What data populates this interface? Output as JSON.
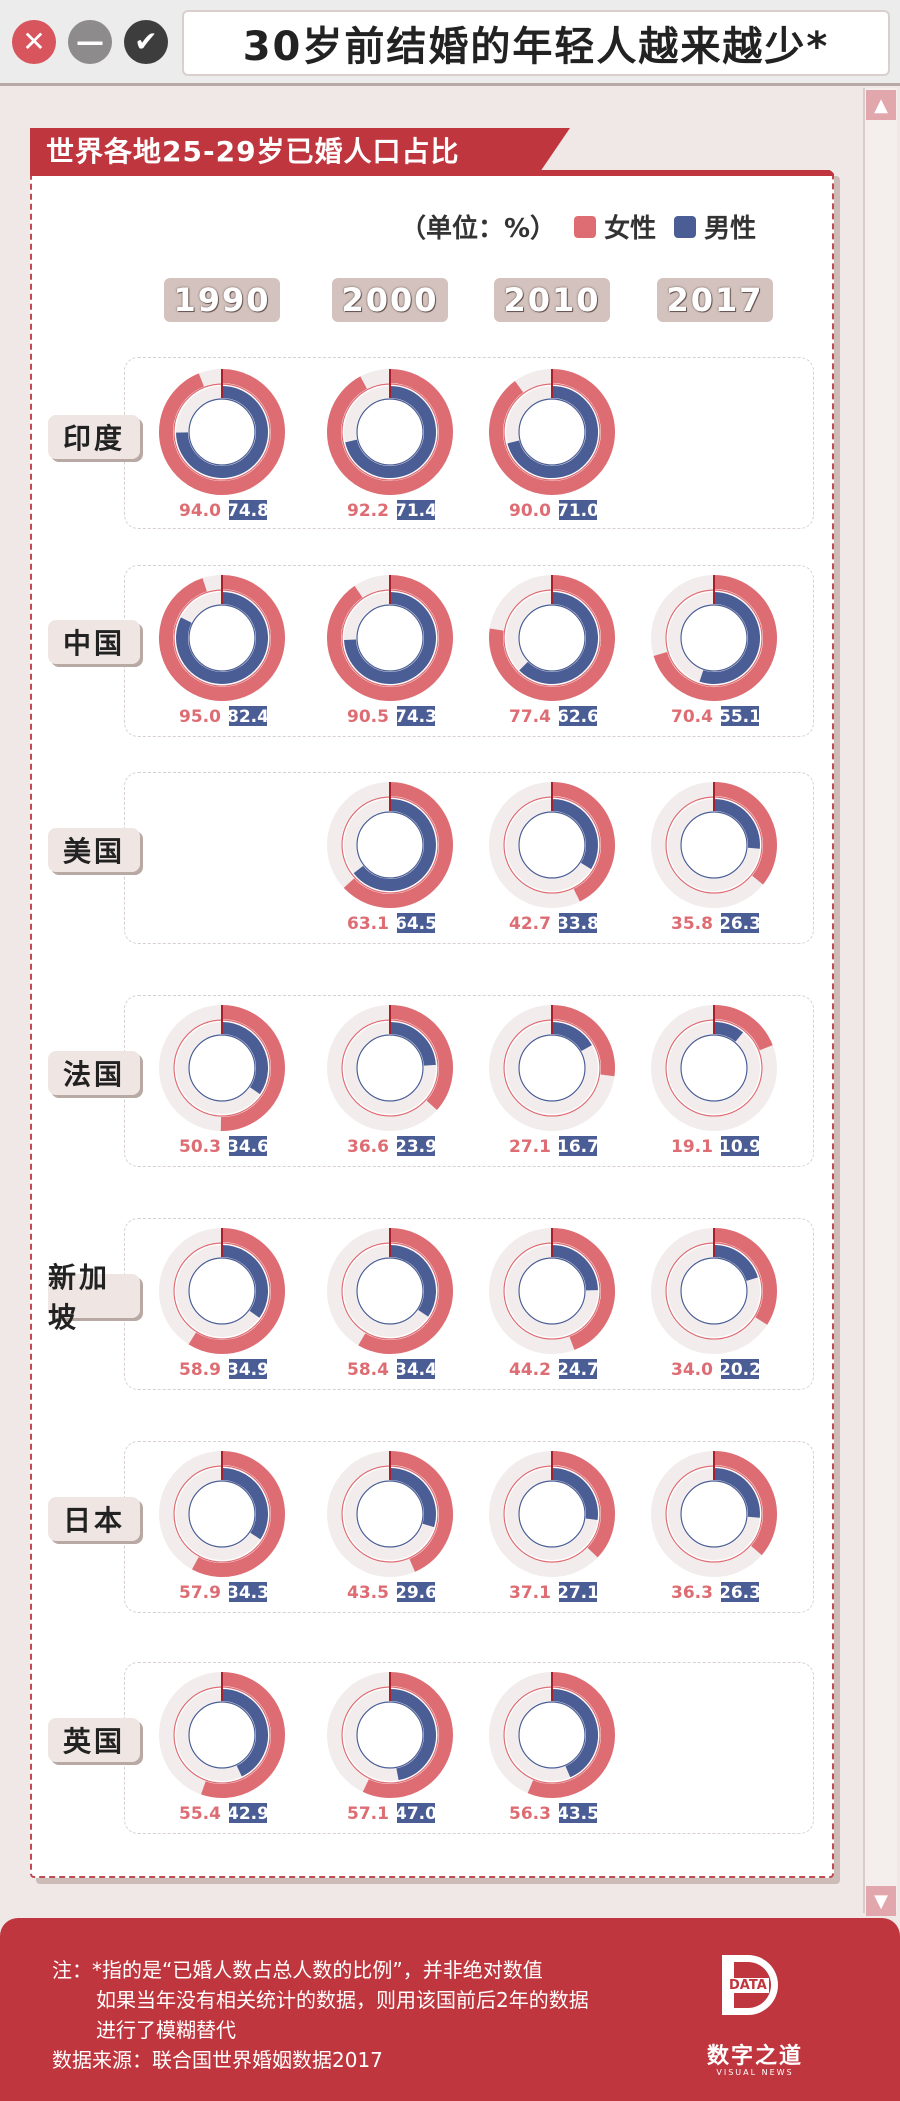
{
  "window": {
    "title": "30岁前结婚的年轻人越来越少*",
    "close_glyph": "✕",
    "min_glyph": "—",
    "ok_glyph": "✔"
  },
  "scroll": {
    "up_glyph": "▲",
    "down_glyph": "▼"
  },
  "legend": {
    "unit": "（单位：%）",
    "female": "女性",
    "male": "男性"
  },
  "colors": {
    "female": "#de6c73",
    "male": "#4a5d95",
    "track": "#f2ecec",
    "accent": "#c0363e"
  },
  "chart_data": {
    "type": "donut",
    "title": "世界各地25-29岁已婚人口占比",
    "unit": "%",
    "years": [
      "1990",
      "2000",
      "2010",
      "2017"
    ],
    "series": [
      {
        "name": "女性"
      },
      {
        "name": "男性"
      }
    ],
    "countries": [
      {
        "name": "印度",
        "values": [
          [
            94.0,
            74.8
          ],
          [
            92.2,
            71.4
          ],
          [
            90.0,
            71.0
          ],
          null
        ]
      },
      {
        "name": "中国",
        "values": [
          [
            95.0,
            82.4
          ],
          [
            90.5,
            74.3
          ],
          [
            77.4,
            62.6
          ],
          [
            70.4,
            55.1
          ]
        ]
      },
      {
        "name": "美国",
        "values": [
          null,
          [
            63.1,
            64.5
          ],
          [
            42.7,
            33.8
          ],
          [
            35.8,
            26.3
          ]
        ]
      },
      {
        "name": "法国",
        "values": [
          [
            50.3,
            34.6
          ],
          [
            36.6,
            23.9
          ],
          [
            27.1,
            16.7
          ],
          [
            19.1,
            10.9
          ]
        ]
      },
      {
        "name": "新加坡",
        "values": [
          [
            58.9,
            34.9
          ],
          [
            58.4,
            34.4
          ],
          [
            44.2,
            24.7
          ],
          [
            34.0,
            20.2
          ]
        ]
      },
      {
        "name": "日本",
        "values": [
          [
            57.9,
            34.3
          ],
          [
            43.5,
            29.6
          ],
          [
            37.1,
            27.1
          ],
          [
            36.3,
            26.3
          ]
        ]
      },
      {
        "name": "英国",
        "values": [
          [
            55.4,
            42.9
          ],
          [
            57.1,
            47.0
          ],
          [
            56.3,
            43.5
          ],
          null
        ]
      }
    ]
  },
  "footer": {
    "note_line1": "注：*指的是“已婚人数占总人数的比例”，并非绝对数值",
    "note_line2": "如果当年没有相关统计的数据，则用该国前后2年的数据",
    "note_line3": "进行了模糊替代",
    "source": "数据来源：联合国世界婚姻数据2017",
    "logo_data": "DATA",
    "logo_name": "数字之道",
    "logo_sub": "VISUAL NEWS"
  }
}
